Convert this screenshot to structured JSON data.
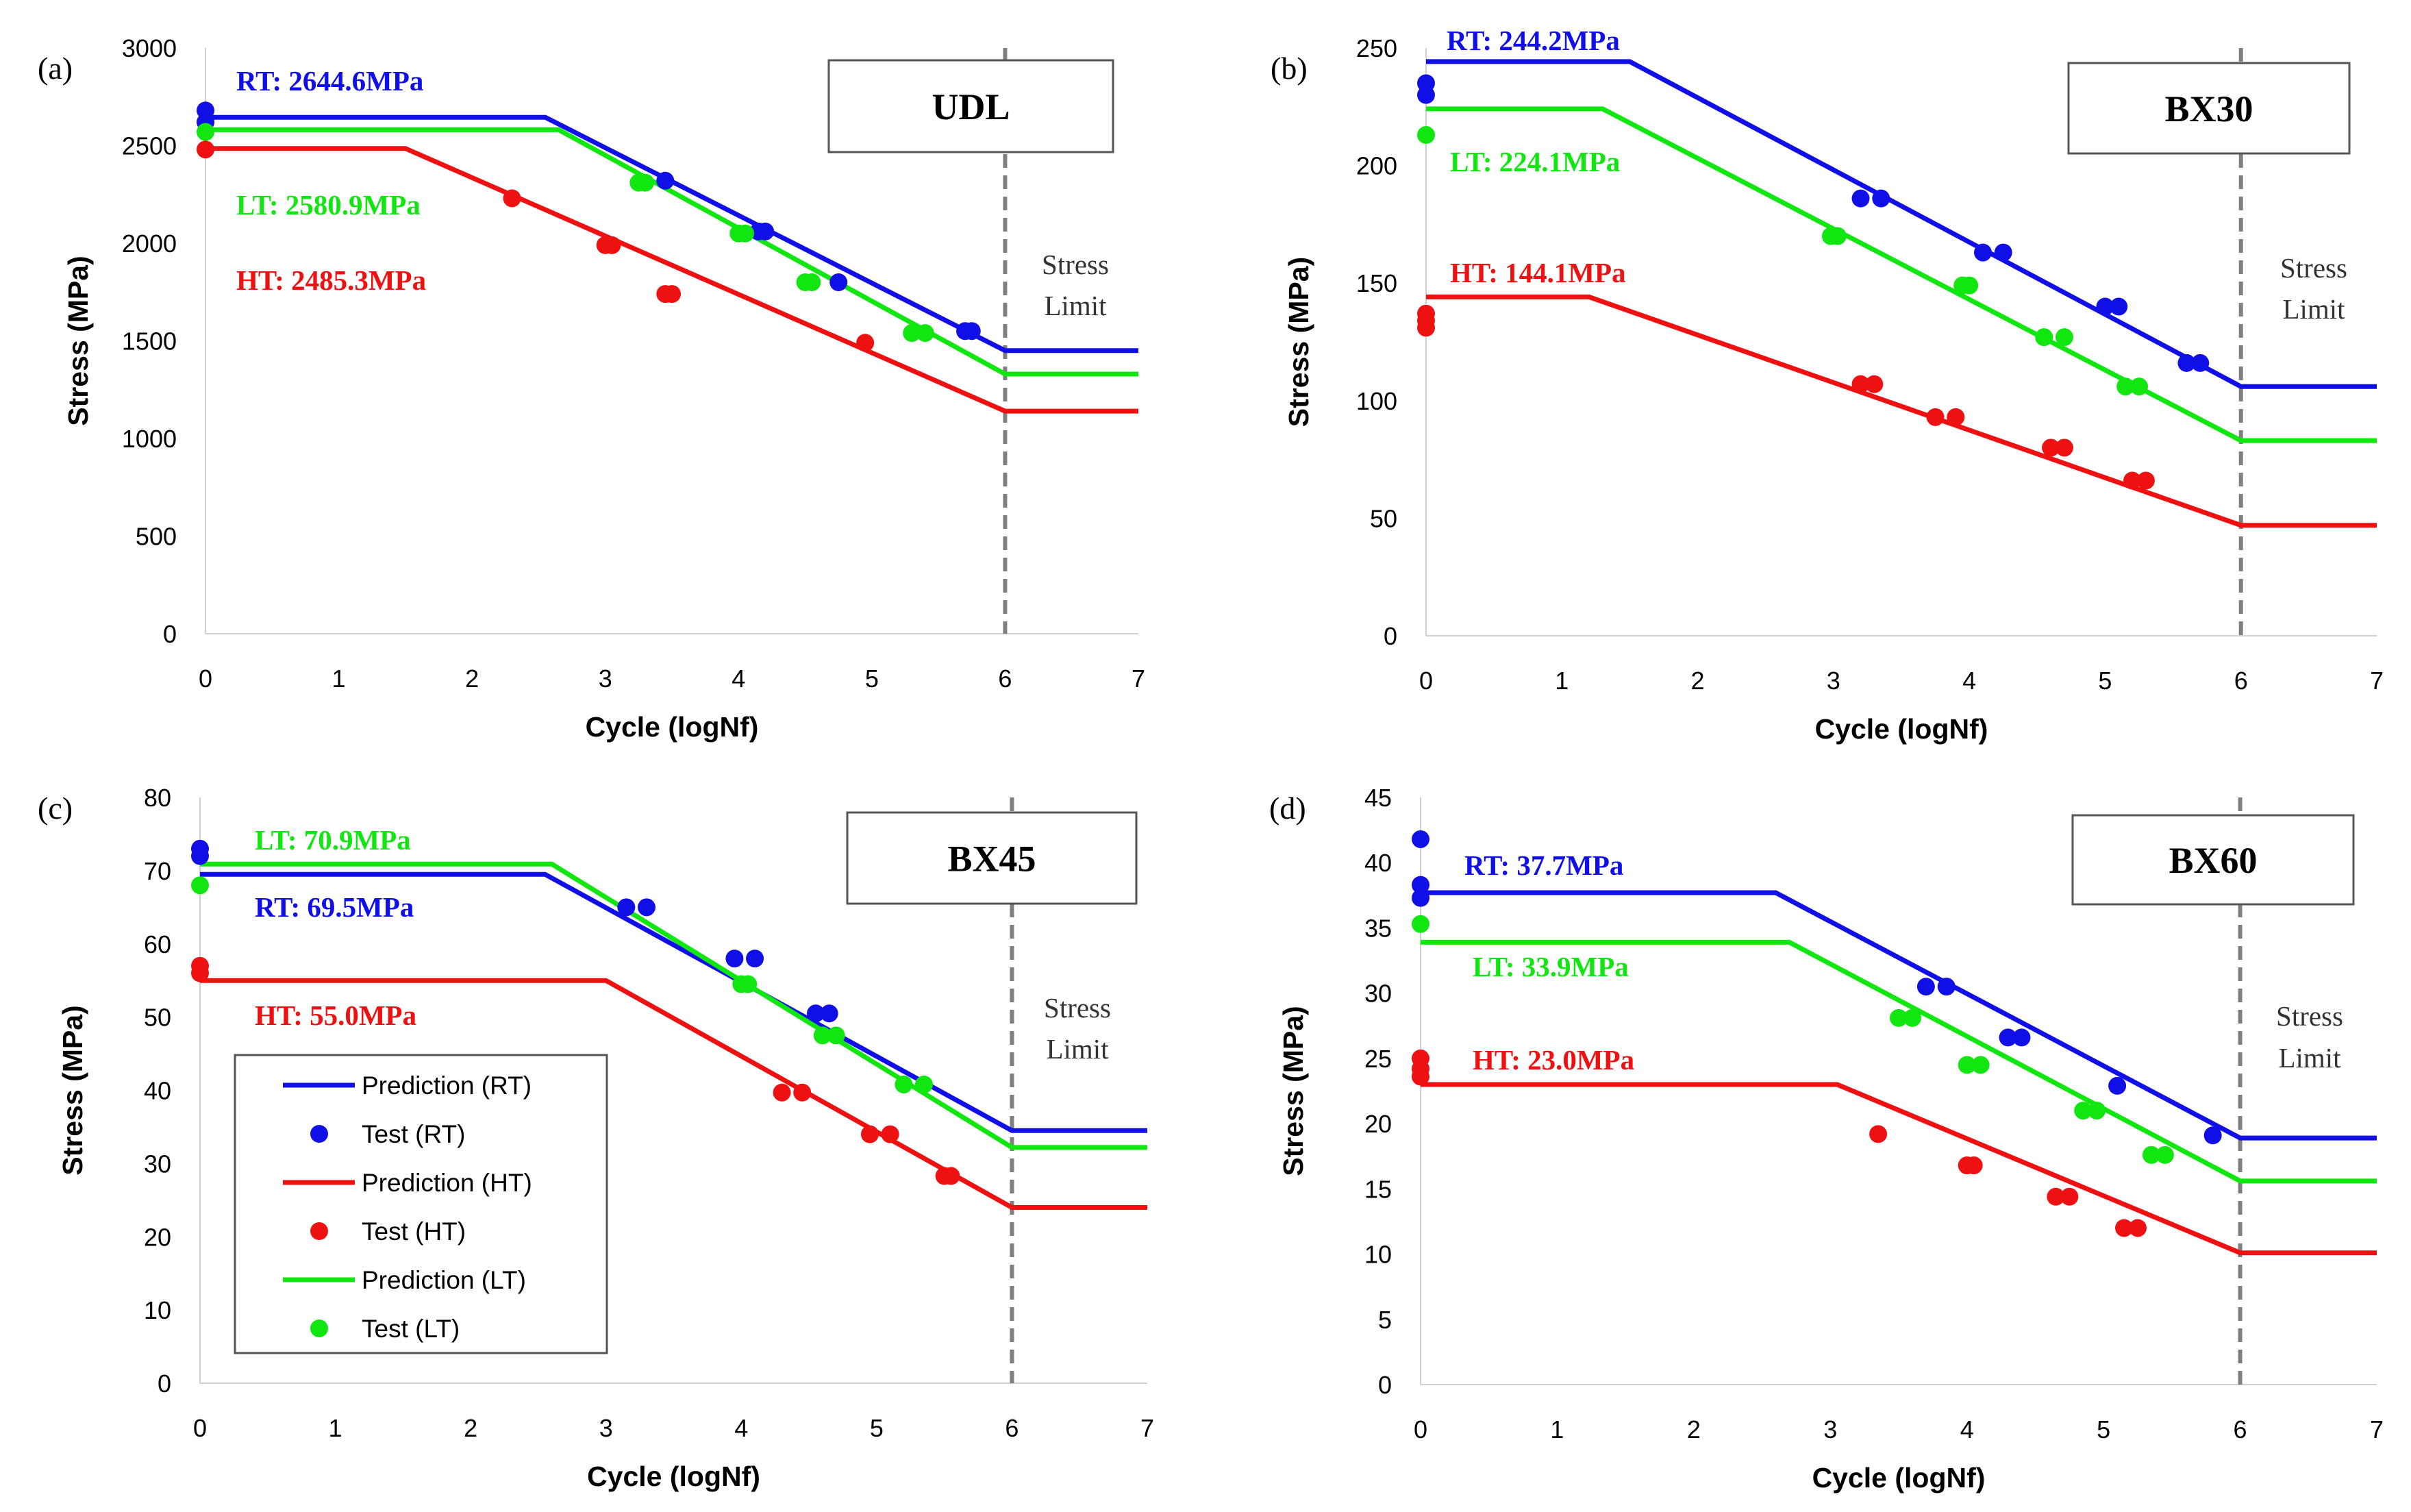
{
  "figure": {
    "colors": {
      "RT": "#1010e6",
      "HT": "#ee1111",
      "LT": "#11e611"
    }
  },
  "legend": {
    "items": [
      {
        "label": "Prediction (RT)",
        "kind": "line",
        "temp": "RT"
      },
      {
        "label": "Test (RT)",
        "kind": "dot",
        "temp": "RT"
      },
      {
        "label": "Prediction (HT)",
        "kind": "line",
        "temp": "HT"
      },
      {
        "label": "Test (HT)",
        "kind": "dot",
        "temp": "HT"
      },
      {
        "label": "Prediction (LT)",
        "kind": "line",
        "temp": "LT"
      },
      {
        "label": "Test (LT)",
        "kind": "dot",
        "temp": "LT"
      }
    ]
  },
  "chart_data": [
    {
      "type": "line",
      "panel_label": "(a)",
      "title": "UDL",
      "xlabel": "Cycle (logNf)",
      "ylabel": "Stress (MPa)",
      "xlim": [
        0,
        7
      ],
      "ylim": [
        0,
        3000
      ],
      "xticks": [
        0,
        1,
        2,
        3,
        4,
        5,
        6,
        7
      ],
      "yticks": [
        0,
        500,
        1000,
        1500,
        2000,
        2500,
        3000
      ],
      "stress_limit_x": 6,
      "stress_limit_text": [
        "Stress",
        "Limit"
      ],
      "annotations": [
        {
          "text": "RT: 2644.6MPa",
          "temp": "RT"
        },
        {
          "text": "LT: 2580.9MPa",
          "temp": "LT"
        },
        {
          "text": "HT: 2485.3MPa",
          "temp": "HT"
        }
      ],
      "series": [
        {
          "name": "Prediction (RT)",
          "temp": "RT",
          "kind": "line",
          "x": [
            0,
            2.55,
            6,
            7
          ],
          "y": [
            2644.6,
            2644.6,
            1450,
            1450
          ]
        },
        {
          "name": "Prediction (LT)",
          "temp": "LT",
          "kind": "line",
          "x": [
            0,
            2.65,
            6,
            7
          ],
          "y": [
            2580.9,
            2580.9,
            1330,
            1330
          ]
        },
        {
          "name": "Prediction (HT)",
          "temp": "HT",
          "kind": "line",
          "x": [
            0,
            1.5,
            6,
            7
          ],
          "y": [
            2485.3,
            2485.3,
            1140,
            1140
          ]
        },
        {
          "name": "Test (RT)",
          "temp": "RT",
          "kind": "dot",
          "x": [
            0,
            0,
            3.45,
            4.15,
            4.2,
            4.75,
            5.7,
            5.75
          ],
          "y": [
            2680,
            2620,
            2320,
            2060,
            2060,
            1800,
            1550,
            1550
          ]
        },
        {
          "name": "Test (LT)",
          "temp": "LT",
          "kind": "dot",
          "x": [
            0,
            3.25,
            3.3,
            4.0,
            4.05,
            4.5,
            4.55,
            5.3,
            5.4
          ],
          "y": [
            2570,
            2310,
            2310,
            2050,
            2050,
            1800,
            1800,
            1540,
            1540
          ]
        },
        {
          "name": "Test (HT)",
          "temp": "HT",
          "kind": "dot",
          "x": [
            0,
            2.3,
            3.0,
            3.05,
            3.45,
            3.5,
            4.95
          ],
          "y": [
            2480,
            2230,
            1990,
            1990,
            1740,
            1740,
            1490
          ]
        }
      ]
    },
    {
      "type": "line",
      "panel_label": "(b)",
      "title": "BX30",
      "xlabel": "Cycle (logNf)",
      "ylabel": "Stress (MPa)",
      "xlim": [
        0,
        7
      ],
      "ylim": [
        0,
        250
      ],
      "xticks": [
        0,
        1,
        2,
        3,
        4,
        5,
        6,
        7
      ],
      "yticks": [
        0,
        50,
        100,
        150,
        200,
        250
      ],
      "stress_limit_x": 6,
      "stress_limit_text": [
        "Stress",
        "Limit"
      ],
      "annotations": [
        {
          "text": "RT: 244.2MPa",
          "temp": "RT"
        },
        {
          "text": "LT: 224.1MPa",
          "temp": "LT"
        },
        {
          "text": "HT: 144.1MPa",
          "temp": "HT"
        }
      ],
      "series": [
        {
          "name": "Prediction (RT)",
          "temp": "RT",
          "kind": "line",
          "x": [
            0,
            1.5,
            6,
            7
          ],
          "y": [
            244.2,
            244.2,
            106,
            106
          ]
        },
        {
          "name": "Prediction (LT)",
          "temp": "LT",
          "kind": "line",
          "x": [
            0,
            1.3,
            6,
            7
          ],
          "y": [
            224.1,
            224.1,
            83,
            83
          ]
        },
        {
          "name": "Prediction (HT)",
          "temp": "HT",
          "kind": "line",
          "x": [
            0,
            1.2,
            6,
            7
          ],
          "y": [
            144.1,
            144.1,
            47,
            47
          ]
        },
        {
          "name": "Test (RT)",
          "temp": "RT",
          "kind": "dot",
          "x": [
            0,
            0,
            3.2,
            3.35,
            4.1,
            4.25,
            5.0,
            5.1,
            5.6,
            5.7
          ],
          "y": [
            235,
            230,
            186,
            186,
            163,
            163,
            140,
            140,
            116,
            116
          ]
        },
        {
          "name": "Test (LT)",
          "temp": "LT",
          "kind": "dot",
          "x": [
            0,
            2.98,
            3.03,
            3.95,
            4.0,
            4.55,
            4.7,
            5.15,
            5.25
          ],
          "y": [
            213,
            170,
            170,
            149,
            149,
            127,
            127,
            106,
            106
          ]
        },
        {
          "name": "Test (HT)",
          "temp": "HT",
          "kind": "dot",
          "x": [
            0,
            0,
            0,
            3.2,
            3.3,
            3.75,
            3.9,
            4.6,
            4.7,
            5.2,
            5.3
          ],
          "y": [
            137,
            134,
            131,
            107,
            107,
            93,
            93,
            80,
            80,
            66,
            66
          ]
        }
      ]
    },
    {
      "type": "line",
      "panel_label": "(c)",
      "title": "BX45",
      "xlabel": "Cycle (logNf)",
      "ylabel": "Stress (MPa)",
      "xlim": [
        0,
        7
      ],
      "ylim": [
        0,
        80
      ],
      "xticks": [
        0,
        1,
        2,
        3,
        4,
        5,
        6,
        7
      ],
      "yticks": [
        0,
        10,
        20,
        30,
        40,
        50,
        60,
        70,
        80
      ],
      "stress_limit_x": 6,
      "stress_limit_text": [
        "Stress",
        "Limit"
      ],
      "annotations": [
        {
          "text": "LT: 70.9MPa",
          "temp": "LT"
        },
        {
          "text": "RT: 69.5MPa",
          "temp": "RT"
        },
        {
          "text": "HT: 55.0MPa",
          "temp": "HT"
        }
      ],
      "series": [
        {
          "name": "Prediction (RT)",
          "temp": "RT",
          "kind": "line",
          "x": [
            0,
            2.55,
            6,
            7
          ],
          "y": [
            69.5,
            69.5,
            34.5,
            34.5
          ]
        },
        {
          "name": "Prediction (LT)",
          "temp": "LT",
          "kind": "line",
          "x": [
            0,
            2.6,
            6,
            7
          ],
          "y": [
            70.9,
            70.9,
            32.2,
            32.2
          ]
        },
        {
          "name": "Prediction (HT)",
          "temp": "HT",
          "kind": "line",
          "x": [
            0,
            3.0,
            6,
            7
          ],
          "y": [
            55.0,
            55.0,
            24.0,
            24.0
          ]
        },
        {
          "name": "Test (RT)",
          "temp": "RT",
          "kind": "dot",
          "x": [
            0,
            0,
            3.15,
            3.3,
            3.95,
            4.1,
            4.55,
            4.65
          ],
          "y": [
            73,
            72,
            65,
            65,
            58,
            58,
            50.5,
            50.5
          ]
        },
        {
          "name": "Test (LT)",
          "temp": "LT",
          "kind": "dot",
          "x": [
            0,
            4.0,
            4.05,
            4.6,
            4.7,
            5.2,
            5.35
          ],
          "y": [
            68,
            54.5,
            54.5,
            47.5,
            47.5,
            40.8,
            40.8
          ]
        },
        {
          "name": "Test (HT)",
          "temp": "HT",
          "kind": "dot",
          "x": [
            0,
            0,
            4.3,
            4.45,
            4.95,
            5.1,
            5.5,
            5.55
          ],
          "y": [
            57,
            56,
            39.7,
            39.7,
            34,
            34,
            28.3,
            28.3
          ]
        }
      ]
    },
    {
      "type": "line",
      "panel_label": "(d)",
      "title": "BX60",
      "xlabel": "Cycle (logNf)",
      "ylabel": "Stress (MPa)",
      "xlim": [
        0,
        7
      ],
      "ylim": [
        0,
        45
      ],
      "xticks": [
        0,
        1,
        2,
        3,
        4,
        5,
        6,
        7
      ],
      "yticks": [
        0,
        5,
        10,
        15,
        20,
        25,
        30,
        35,
        40,
        45
      ],
      "stress_limit_x": 6,
      "stress_limit_text": [
        "Stress",
        "Limit"
      ],
      "annotations": [
        {
          "text": "RT: 37.7MPa",
          "temp": "RT"
        },
        {
          "text": "LT: 33.9MPa",
          "temp": "LT"
        },
        {
          "text": "HT: 23.0MPa",
          "temp": "HT"
        }
      ],
      "series": [
        {
          "name": "Prediction (RT)",
          "temp": "RT",
          "kind": "line",
          "x": [
            0,
            2.6,
            6,
            7
          ],
          "y": [
            37.7,
            37.7,
            18.9,
            18.9
          ]
        },
        {
          "name": "Prediction (LT)",
          "temp": "LT",
          "kind": "line",
          "x": [
            0,
            2.7,
            6,
            7
          ],
          "y": [
            33.9,
            33.9,
            15.6,
            15.6
          ]
        },
        {
          "name": "Prediction (HT)",
          "temp": "HT",
          "kind": "line",
          "x": [
            0,
            3.05,
            6,
            7
          ],
          "y": [
            23.0,
            23.0,
            10.1,
            10.1
          ]
        },
        {
          "name": "Test (RT)",
          "temp": "RT",
          "kind": "dot",
          "x": [
            0,
            0,
            0,
            3.7,
            3.85,
            4.3,
            4.4,
            5.1,
            5.8
          ],
          "y": [
            41.8,
            38.3,
            37.3,
            30.5,
            30.5,
            26.6,
            26.6,
            22.9,
            19.1
          ]
        },
        {
          "name": "Test (LT)",
          "temp": "LT",
          "kind": "dot",
          "x": [
            0,
            3.5,
            3.6,
            4.0,
            4.1,
            4.85,
            4.95,
            5.35,
            5.45
          ],
          "y": [
            35.3,
            28.1,
            28.1,
            24.5,
            24.5,
            21.0,
            21.0,
            17.6,
            17.6
          ]
        },
        {
          "name": "Test (HT)",
          "temp": "HT",
          "kind": "dot",
          "x": [
            0,
            0,
            0,
            3.35,
            4.0,
            4.05,
            4.65,
            4.75,
            5.15,
            5.25
          ],
          "y": [
            25,
            24.2,
            23.6,
            19.2,
            16.8,
            16.8,
            14.4,
            14.4,
            12,
            12
          ]
        }
      ]
    }
  ]
}
